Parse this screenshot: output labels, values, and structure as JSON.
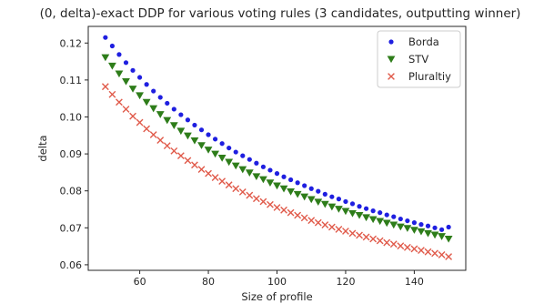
{
  "chart_data": {
    "type": "scatter",
    "title": "(0, delta)-exact DDP for various voting rules (3 candidates, outputting winner)",
    "xlabel": "Size of profile",
    "ylabel": "delta",
    "xlim": [
      45,
      155
    ],
    "ylim": [
      0.0585,
      0.1245
    ],
    "xticks": [
      60,
      80,
      100,
      120,
      140
    ],
    "yticks": [
      0.06,
      0.07,
      0.08,
      0.09,
      0.1,
      0.11,
      0.12
    ],
    "ytick_labels": [
      "0.06",
      "0.07",
      "0.08",
      "0.09",
      "0.10",
      "0.11",
      "0.12"
    ],
    "grid": false,
    "legend_position": "top-right",
    "x": [
      50,
      52,
      54,
      56,
      58,
      60,
      62,
      64,
      66,
      68,
      70,
      72,
      74,
      76,
      78,
      80,
      82,
      84,
      86,
      88,
      90,
      92,
      94,
      96,
      98,
      100,
      102,
      104,
      106,
      108,
      110,
      112,
      114,
      116,
      118,
      120,
      122,
      124,
      126,
      128,
      130,
      132,
      134,
      136,
      138,
      140,
      142,
      144,
      146,
      148,
      150
    ],
    "series": [
      {
        "name": "Borda",
        "marker": "dot",
        "color": "#1f1fe0",
        "values": [
          0.1215,
          0.1192,
          0.1169,
          0.1147,
          0.1126,
          0.1107,
          0.1088,
          0.107,
          0.1053,
          0.1037,
          0.1021,
          0.1006,
          0.0992,
          0.0978,
          0.0965,
          0.0952,
          0.094,
          0.0928,
          0.0916,
          0.0905,
          0.0895,
          0.0885,
          0.0875,
          0.0865,
          0.0856,
          0.0847,
          0.0838,
          0.083,
          0.0822,
          0.0814,
          0.0806,
          0.0799,
          0.0791,
          0.0784,
          0.0778,
          0.0771,
          0.0765,
          0.0758,
          0.0752,
          0.0746,
          0.0741,
          0.0735,
          0.073,
          0.0724,
          0.0719,
          0.0714,
          0.0709,
          0.0705,
          0.07,
          0.0695,
          0.0702
        ]
      },
      {
        "name": "STV",
        "marker": "triangle-down",
        "color": "#2e7d1a",
        "values": [
          0.1161,
          0.1138,
          0.1117,
          0.1096,
          0.1076,
          0.1058,
          0.104,
          0.1023,
          0.1007,
          0.0991,
          0.0977,
          0.0962,
          0.0949,
          0.0936,
          0.0923,
          0.0911,
          0.09,
          0.0889,
          0.0878,
          0.0868,
          0.0858,
          0.0849,
          0.0839,
          0.0831,
          0.0822,
          0.0814,
          0.0806,
          0.0798,
          0.0791,
          0.0784,
          0.0777,
          0.077,
          0.0764,
          0.0757,
          0.0751,
          0.0745,
          0.0739,
          0.0734,
          0.0728,
          0.0723,
          0.0718,
          0.0713,
          0.0708,
          0.0703,
          0.0699,
          0.0694,
          0.069,
          0.0685,
          0.0681,
          0.0677,
          0.067
        ]
      },
      {
        "name": "Pluraltiy",
        "marker": "x",
        "color": "#e05a4a",
        "values": [
          0.1082,
          0.1061,
          0.104,
          0.1021,
          0.1002,
          0.0985,
          0.0968,
          0.0952,
          0.0937,
          0.0922,
          0.0908,
          0.0895,
          0.0882,
          0.087,
          0.0858,
          0.0847,
          0.0836,
          0.0826,
          0.0816,
          0.0806,
          0.0797,
          0.0788,
          0.0779,
          0.0771,
          0.0763,
          0.0755,
          0.0748,
          0.0741,
          0.0734,
          0.0727,
          0.072,
          0.0714,
          0.0708,
          0.0702,
          0.0696,
          0.0691,
          0.0685,
          0.068,
          0.0675,
          0.067,
          0.0665,
          0.066,
          0.0656,
          0.0651,
          0.0647,
          0.0643,
          0.0639,
          0.0635,
          0.0631,
          0.0627,
          0.0622
        ]
      }
    ]
  }
}
